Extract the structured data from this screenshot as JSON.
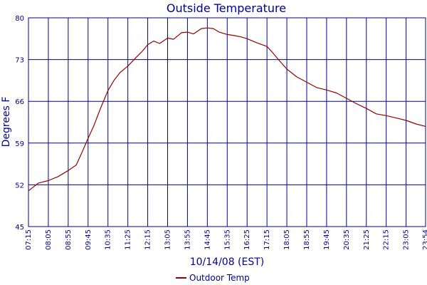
{
  "chart_data": {
    "type": "line",
    "title": "Outside Temperature",
    "xlabel": "10/14/08 (EST)",
    "ylabel": "Degrees F",
    "ylim": [
      45,
      80
    ],
    "yticks": [
      45,
      52,
      59,
      66,
      73,
      80
    ],
    "xticks": [
      "07:15",
      "08:05",
      "08:55",
      "09:45",
      "10:35",
      "11:25",
      "12:15",
      "13:05",
      "13:55",
      "14:45",
      "15:35",
      "16:25",
      "17:15",
      "18:05",
      "18:55",
      "19:45",
      "20:35",
      "21:25",
      "22:15",
      "23:05",
      "23:54"
    ],
    "grid": true,
    "legend_position": "bottom-center",
    "series": [
      {
        "name": "Outdoor Temp",
        "color": "#990000",
        "x": [
          "07:15",
          "07:40",
          "08:05",
          "08:30",
          "08:55",
          "09:15",
          "09:30",
          "09:45",
          "10:00",
          "10:15",
          "10:35",
          "10:50",
          "11:05",
          "11:25",
          "11:45",
          "12:00",
          "12:15",
          "12:30",
          "12:45",
          "13:05",
          "13:20",
          "13:40",
          "13:55",
          "14:10",
          "14:30",
          "14:45",
          "15:00",
          "15:15",
          "15:35",
          "15:55",
          "16:10",
          "16:25",
          "16:50",
          "17:15",
          "17:30",
          "17:45",
          "18:05",
          "18:30",
          "18:55",
          "19:20",
          "19:45",
          "20:10",
          "20:35",
          "21:00",
          "21:25",
          "21:50",
          "22:15",
          "22:40",
          "23:05",
          "23:30",
          "23:54"
        ],
        "values": [
          51.0,
          52.3,
          52.7,
          53.4,
          54.4,
          55.3,
          57.5,
          59.8,
          62.0,
          64.6,
          67.8,
          69.5,
          70.8,
          71.9,
          73.3,
          74.3,
          75.5,
          76.1,
          75.7,
          76.6,
          76.4,
          77.5,
          77.6,
          77.3,
          78.2,
          78.3,
          78.2,
          77.6,
          77.2,
          77.0,
          76.8,
          76.5,
          75.8,
          75.2,
          74.1,
          72.9,
          71.4,
          70.1,
          69.2,
          68.3,
          67.9,
          67.4,
          66.5,
          65.6,
          64.8,
          63.9,
          63.6,
          63.2,
          62.8,
          62.2,
          61.8
        ]
      }
    ]
  }
}
